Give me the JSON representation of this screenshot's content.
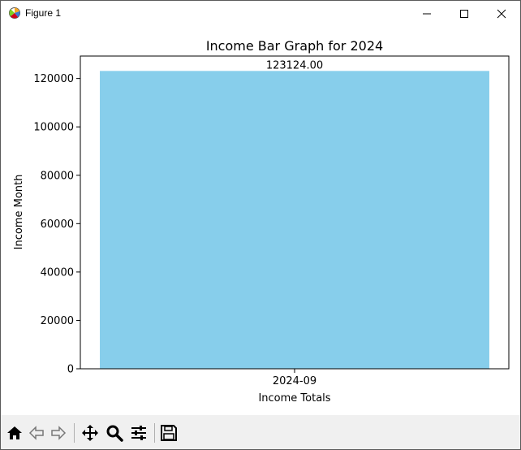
{
  "window": {
    "title": "Figure 1"
  },
  "chart_data": {
    "type": "bar",
    "title": "Income Bar Graph for 2024",
    "xlabel": "Income Totals",
    "ylabel": "Income Month",
    "categories": [
      "2024-09"
    ],
    "values": [
      123124.0
    ],
    "value_labels": [
      "123124.00"
    ],
    "ylim": [
      0,
      129280
    ],
    "yticks": [
      0,
      20000,
      40000,
      60000,
      80000,
      100000,
      120000
    ],
    "ytick_labels": [
      "0",
      "20000",
      "40000",
      "60000",
      "80000",
      "100000",
      "120000"
    ],
    "bar_color": "#87ceeb",
    "grid": false
  },
  "toolbar": {
    "buttons": [
      "home-icon",
      "back-icon",
      "forward-icon",
      "pan-icon",
      "zoom-icon",
      "configure-subplots-icon",
      "save-icon"
    ]
  }
}
